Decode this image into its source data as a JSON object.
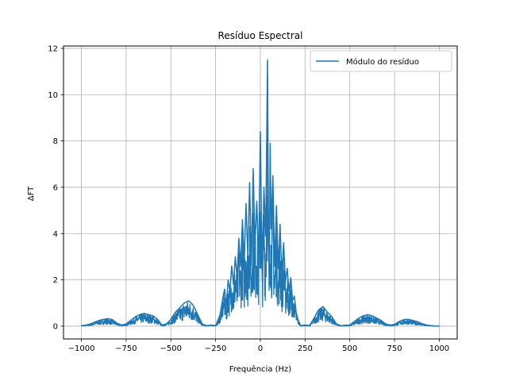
{
  "chart_data": {
    "type": "line",
    "title": "Resíduo Espectral",
    "xlabel": "Frequência (Hz)",
    "ylabel": "ΔFT",
    "xlim": [
      -1100,
      1100
    ],
    "ylim": [
      -0.55,
      12.1
    ],
    "xticks": [
      -1000,
      -750,
      -500,
      -250,
      0,
      250,
      500,
      750,
      1000
    ],
    "xtick_labels": [
      "−1000",
      "−750",
      "−500",
      "−250",
      "0",
      "250",
      "500",
      "750",
      "1000"
    ],
    "yticks": [
      0,
      2,
      4,
      6,
      8,
      10,
      12
    ],
    "ytick_labels": [
      "0",
      "2",
      "4",
      "6",
      "8",
      "10",
      "12"
    ],
    "grid": true,
    "legend_position": "top-right",
    "series": [
      {
        "name": "Módulo do resíduo",
        "color": "#1f77b4",
        "x": [
          -1000,
          -975,
          -950,
          -925,
          -900,
          -875,
          -850,
          -825,
          -800,
          -775,
          -750,
          -725,
          -700,
          -675,
          -650,
          -625,
          -600,
          -575,
          -550,
          -525,
          -500,
          -475,
          -450,
          -425,
          -400,
          -375,
          -350,
          -325,
          -300,
          -275,
          -250,
          -225,
          -210,
          -200,
          -190,
          -180,
          -170,
          -160,
          -150,
          -140,
          -130,
          -120,
          -110,
          -100,
          -90,
          -80,
          -70,
          -60,
          -50,
          -40,
          -30,
          -20,
          -10,
          0,
          10,
          20,
          30,
          40,
          45,
          50,
          55,
          60,
          70,
          80,
          90,
          100,
          110,
          120,
          130,
          140,
          150,
          160,
          170,
          180,
          190,
          200,
          210,
          225,
          250,
          275,
          300,
          325,
          350,
          375,
          400,
          425,
          450,
          475,
          500,
          525,
          550,
          575,
          600,
          625,
          650,
          675,
          700,
          725,
          750,
          775,
          800,
          825,
          850,
          875,
          900,
          925,
          950,
          975,
          1000
        ],
        "y": [
          0.02,
          0.05,
          0.1,
          0.18,
          0.25,
          0.3,
          0.33,
          0.28,
          0.12,
          0.05,
          0.1,
          0.25,
          0.4,
          0.5,
          0.55,
          0.5,
          0.45,
          0.3,
          0.05,
          0.1,
          0.3,
          0.6,
          0.8,
          1.0,
          1.1,
          0.9,
          0.5,
          0.1,
          0.02,
          0.05,
          0.02,
          0.5,
          1.2,
          1.6,
          0.9,
          2.0,
          1.5,
          2.6,
          1.8,
          3.0,
          2.1,
          3.8,
          2.6,
          4.6,
          2.8,
          5.3,
          3.0,
          6.2,
          2.6,
          6.8,
          3.5,
          5.4,
          2.7,
          8.4,
          2.4,
          6.0,
          3.9,
          11.5,
          4.8,
          2.2,
          7.9,
          4.2,
          6.5,
          2.6,
          5.2,
          2.5,
          4.4,
          2.2,
          3.6,
          1.9,
          2.5,
          1.5,
          2.1,
          1.1,
          1.3,
          0.6,
          0.3,
          0.02,
          0.05,
          0.03,
          0.35,
          0.7,
          0.85,
          0.6,
          0.4,
          0.1,
          0.02,
          0.04,
          0.05,
          0.2,
          0.35,
          0.45,
          0.5,
          0.45,
          0.35,
          0.25,
          0.1,
          0.05,
          0.08,
          0.2,
          0.28,
          0.3,
          0.25,
          0.2,
          0.12,
          0.06,
          0.03,
          0.01,
          0.0
        ]
      }
    ]
  }
}
